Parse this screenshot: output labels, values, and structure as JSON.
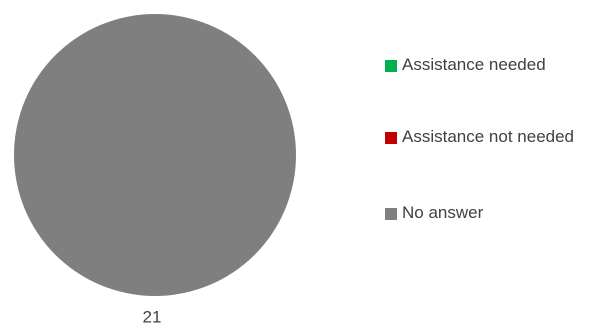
{
  "chart_data": {
    "type": "pie",
    "categories": [
      "Assistance needed",
      "Assistance not needed",
      "No answer"
    ],
    "values": [
      0,
      0,
      21
    ],
    "colors": [
      "#00b050",
      "#c00000",
      "#7f7f7f"
    ],
    "data_labels": [
      "21"
    ],
    "legend_position": "right",
    "title": ""
  },
  "legend": {
    "items": [
      {
        "label": "Assistance needed",
        "color": "#00b050"
      },
      {
        "label": "Assistance not needed",
        "color": "#c00000"
      },
      {
        "label": "No answer",
        "color": "#7f7f7f"
      }
    ]
  }
}
